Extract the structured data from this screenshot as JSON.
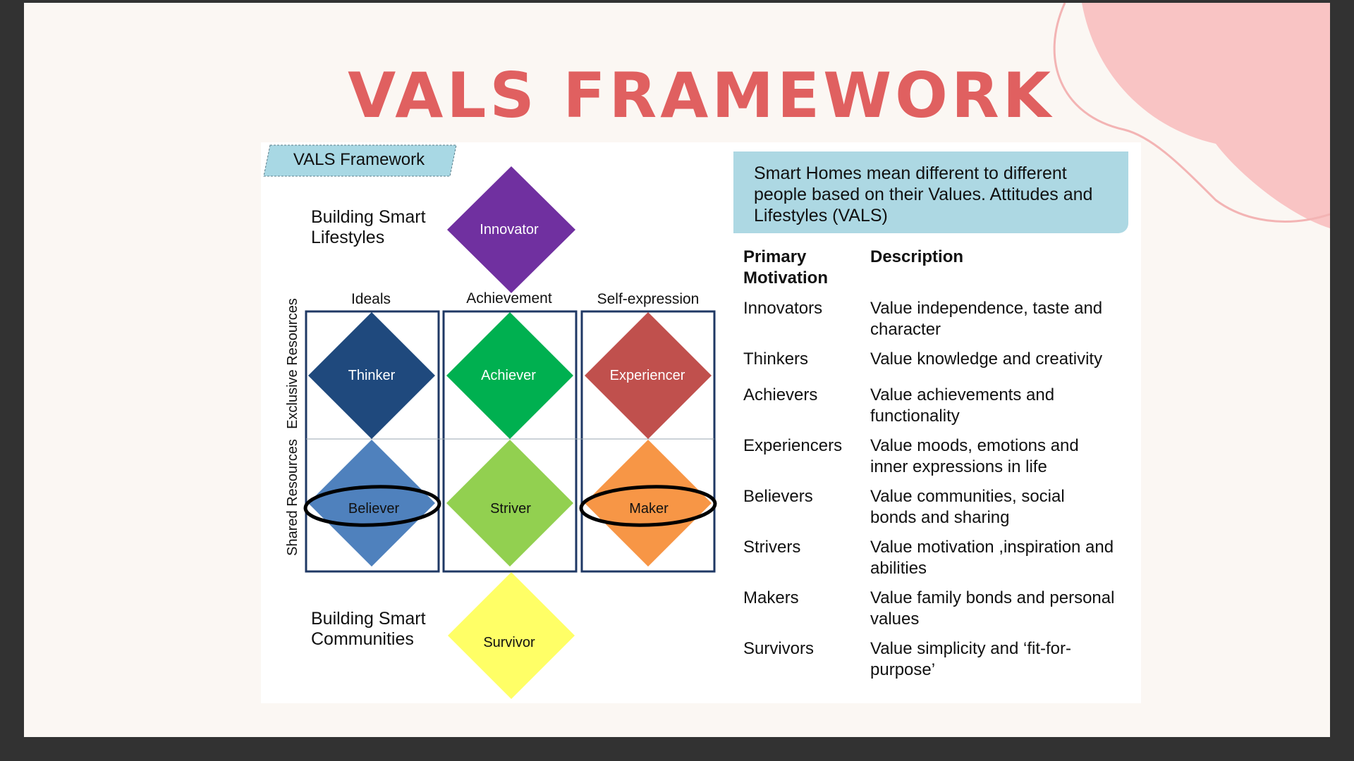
{
  "slide": {
    "title": "VALS FRAMEWORK"
  },
  "diagram": {
    "tag": "VALS Framework",
    "top_caption": [
      "Building Smart",
      "Lifestyles"
    ],
    "bottom_caption": [
      "Building Smart",
      "Communities"
    ],
    "columns": [
      "Ideals",
      "Achievement",
      "Self-expression"
    ],
    "side_labels": [
      "Exclusive Resources",
      "Shared Resources"
    ],
    "innovator": "Innovator",
    "upper_row": [
      "Thinker",
      "Achiever",
      "Experiencer"
    ],
    "lower_row": [
      "Believer",
      "Striver",
      "Maker"
    ],
    "survivor": "Survivor",
    "colors": {
      "innovator": "#7030a0",
      "thinker": "#1f497d",
      "achiever": "#00b050",
      "experiencer": "#c0504d",
      "believer": "#4f81bd",
      "striver": "#92d050",
      "maker": "#f79646",
      "survivor": "#ffff66"
    }
  },
  "info_box": "Smart Homes mean different to different people based on their Values. Attitudes and Lifestyles (VALS)",
  "table": {
    "headers": {
      "motivation": [
        "Primary",
        "Motivation"
      ],
      "description": "Description"
    },
    "rows": [
      {
        "motivation": "Innovators",
        "description": [
          "Value independence, taste and",
          "character"
        ]
      },
      {
        "motivation": "Thinkers",
        "description": [
          "Value knowledge and creativity"
        ]
      },
      {
        "motivation": "Achievers",
        "description": [
          "Value achievements and",
          "functionality"
        ]
      },
      {
        "motivation": "Experiencers",
        "description": [
          "Value moods, emotions and",
          "inner expressions in life"
        ]
      },
      {
        "motivation": "Believers",
        "description": [
          "Value communities, social",
          "bonds and sharing"
        ]
      },
      {
        "motivation": "Strivers",
        "description": [
          "Value motivation ,inspiration and",
          "abilities"
        ]
      },
      {
        "motivation": "Makers",
        "description": [
          "Value family bonds and personal",
          "values"
        ]
      },
      {
        "motivation": "Survivors",
        "description": [
          "Value simplicity and ‘fit-for-",
          "purpose’"
        ]
      }
    ]
  }
}
